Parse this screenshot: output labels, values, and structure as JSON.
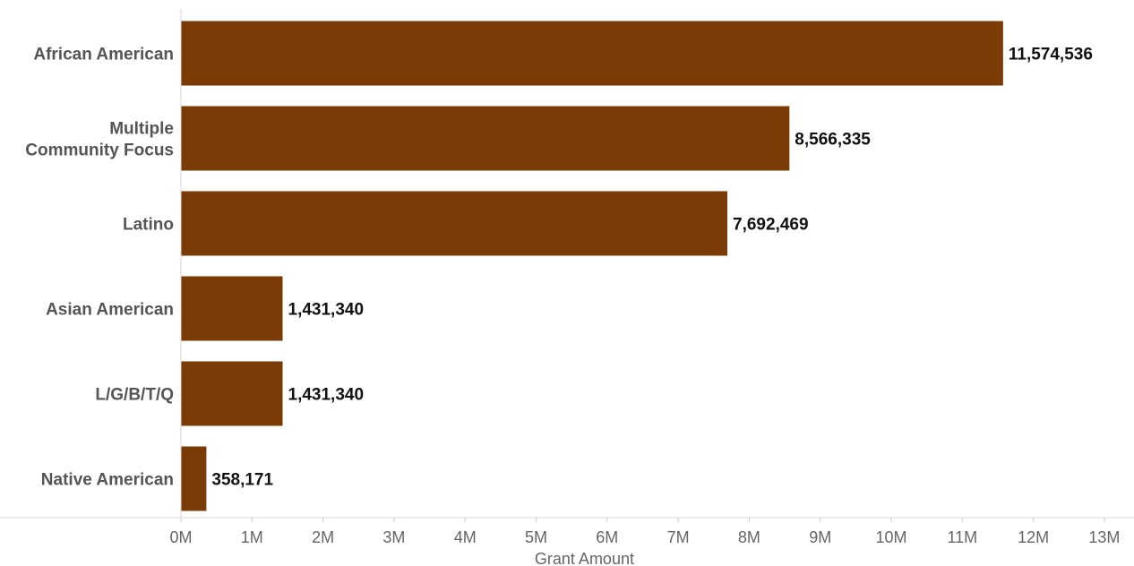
{
  "chart_data": {
    "type": "bar",
    "orientation": "horizontal",
    "categories": [
      "African American",
      "Multiple Community Focus",
      "Latino",
      "Asian American",
      "L/G/B/T/Q",
      "Native American"
    ],
    "category_label_lines": [
      [
        "African American"
      ],
      [
        "Multiple",
        "Community Focus"
      ],
      [
        "Latino"
      ],
      [
        "Asian American"
      ],
      [
        "L/G/B/T/Q"
      ],
      [
        "Native American"
      ]
    ],
    "values": [
      11574536,
      8566335,
      7692469,
      1431340,
      1431340,
      358171
    ],
    "value_labels": [
      "11,574,536",
      "8,566,335",
      "7,692,469",
      "1,431,340",
      "1,431,340",
      "358,171"
    ],
    "xlabel": "Grant Amount",
    "xlim": [
      0,
      13000000
    ],
    "xticks": [
      0,
      1000000,
      2000000,
      3000000,
      4000000,
      5000000,
      6000000,
      7000000,
      8000000,
      9000000,
      10000000,
      11000000,
      12000000,
      13000000
    ],
    "xtick_labels": [
      "0M",
      "1M",
      "2M",
      "3M",
      "4M",
      "5M",
      "6M",
      "7M",
      "8M",
      "9M",
      "10M",
      "11M",
      "12M",
      "13M"
    ],
    "grid": false,
    "bar_color": "#7a3b06"
  }
}
